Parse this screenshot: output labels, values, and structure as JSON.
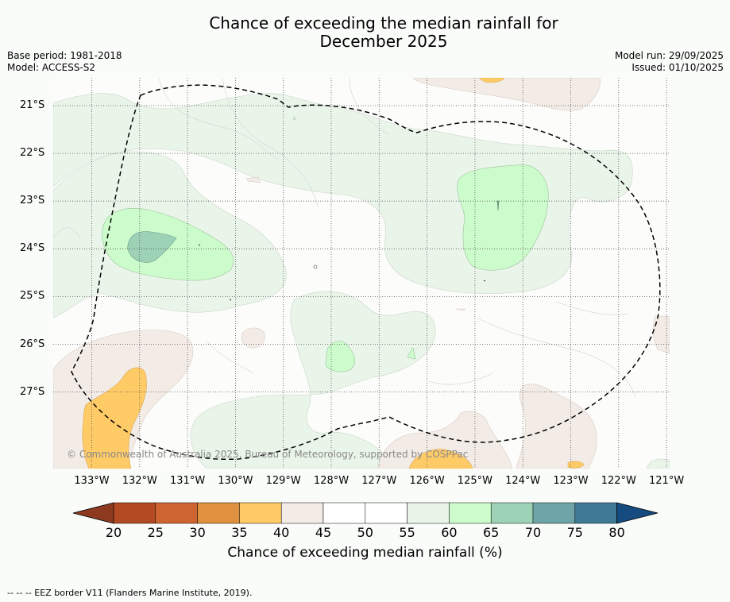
{
  "title_line1": "Chance of exceeding the median rainfall for",
  "title_line2": "December 2025",
  "meta_left": {
    "base_period": "Base period: 1981-2018",
    "model": "Model: ACCESS-S2"
  },
  "meta_right": {
    "model_run": "Model run: 29/09/2025",
    "issued": "Issued: 01/10/2025"
  },
  "map": {
    "lat_labels": [
      "21°S",
      "22°S",
      "23°S",
      "24°S",
      "25°S",
      "26°S",
      "27°S"
    ],
    "lon_labels": [
      "133°W",
      "132°W",
      "131°W",
      "130°W",
      "129°W",
      "128°W",
      "127°W",
      "126°W",
      "125°W",
      "124°W",
      "123°W",
      "122°W",
      "121°W"
    ],
    "copyright": "© Commonwealth of Australia 2025, Bureau of Meteorology, supported by COSPPac",
    "colors": {
      "40-45": "#f2ebe6",
      "45-55": "#ffffff",
      "55-60": "#eaf5ea",
      "60-65": "#ccfccc",
      "65-70": "#9dd2b7",
      "35-40": "#ffcb66",
      "ocean_bg": "#fcfcfa"
    }
  },
  "colorbar": {
    "ticks": [
      "20",
      "25",
      "30",
      "35",
      "40",
      "45",
      "50",
      "55",
      "60",
      "65",
      "70",
      "75",
      "80"
    ],
    "colors": [
      "#8e3a21",
      "#b24b24",
      "#cf6433",
      "#e0913f",
      "#ffcb66",
      "#f2ebe6",
      "#ffffff",
      "#ffffff",
      "#eaf5ea",
      "#ccfccc",
      "#9dd2b7",
      "#6ea4a5",
      "#407a97",
      "#164b80"
    ],
    "label": "Chance of exceeding median rainfall (%)"
  },
  "footnote": "--  --  -- EEZ border V11 (Flanders Marine Institute, 2019)."
}
